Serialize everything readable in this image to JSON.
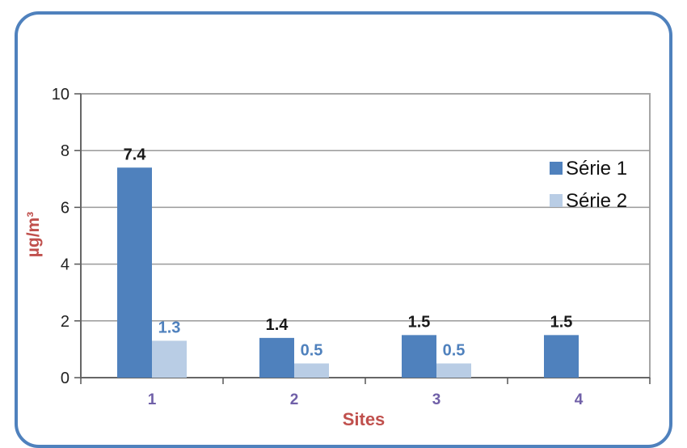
{
  "chart_data": {
    "type": "bar",
    "title": "",
    "xlabel": "Sites",
    "ylabel": "µg/m³",
    "categories": [
      "1",
      "2",
      "3",
      "4"
    ],
    "ylim": [
      0,
      10
    ],
    "yticks": [
      "0",
      "2",
      "4",
      "6",
      "8",
      "10"
    ],
    "grid": true,
    "legend": "right",
    "series": [
      {
        "name": "Série 1",
        "color": "#4f81bd",
        "values": [
          7.4,
          1.4,
          1.5,
          1.5
        ],
        "labels": [
          "7.4",
          "1.4",
          "1.5",
          "1.5"
        ]
      },
      {
        "name": "Série 2",
        "color": "#b9cde5",
        "values": [
          1.3,
          0.5,
          0.5,
          null
        ],
        "labels": [
          "1.3",
          "0.5",
          "0.5",
          ""
        ]
      }
    ]
  }
}
